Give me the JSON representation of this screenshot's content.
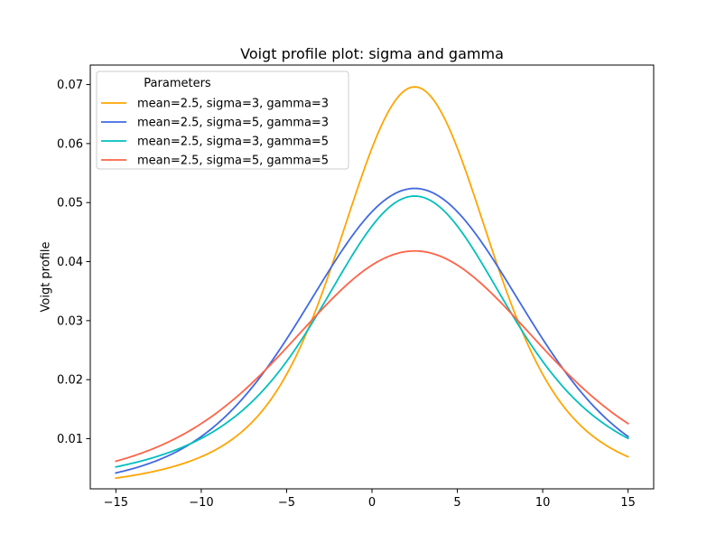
{
  "chart_data": {
    "type": "line",
    "title": "Voigt profile plot: sigma and gamma",
    "xlabel": "",
    "ylabel": "Voigt profile",
    "xlim": [
      -16.5,
      16.5
    ],
    "ylim": [
      0.0015,
      0.0733
    ],
    "xticks": [
      -15,
      -10,
      -5,
      0,
      5,
      10,
      15
    ],
    "xtick_labels": [
      "−15",
      "−10",
      "−5",
      "0",
      "5",
      "10",
      "15"
    ],
    "yticks": [
      0.01,
      0.02,
      0.03,
      0.04,
      0.05,
      0.06,
      0.07
    ],
    "ytick_labels": [
      "0.01",
      "0.02",
      "0.03",
      "0.04",
      "0.05",
      "0.06",
      "0.07"
    ],
    "grid": false,
    "x_range": [
      -15,
      15
    ],
    "legend": {
      "title": "Parameters",
      "location": "upper-left"
    },
    "series": [
      {
        "name": "mean=2.5, sigma=3, gamma=3",
        "mean": 2.5,
        "sigma": 3,
        "gamma": 3,
        "color": "#FFA500"
      },
      {
        "name": "mean=2.5, sigma=5, gamma=3",
        "mean": 2.5,
        "sigma": 5,
        "gamma": 3,
        "color": "#4169E1"
      },
      {
        "name": "mean=2.5, sigma=3, gamma=5",
        "mean": 2.5,
        "sigma": 3,
        "gamma": 5,
        "color": "#00BFBF"
      },
      {
        "name": "mean=2.5, sigma=5, gamma=5",
        "mean": 2.5,
        "sigma": 5,
        "gamma": 5,
        "color": "#FF6347"
      }
    ],
    "peak_values": [
      0.0696,
      0.0524,
      0.0511,
      0.0418
    ]
  }
}
